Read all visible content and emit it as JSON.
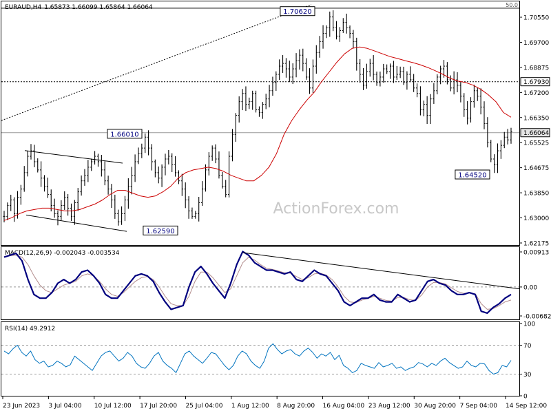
{
  "header": {
    "symbol": "EURAUD,H4",
    "ohlc": "1.65873 1.66099 1.65864 1.66064"
  },
  "watermark": "ActionForex.com",
  "colors": {
    "price": "#000000",
    "ma": "#cc0000",
    "macd_line": "#00007f",
    "macd_signal": "#b28c8c",
    "rsi": "#0073bf",
    "grid": "#999999",
    "watermark": "#c8c8c8"
  },
  "chart_data": [
    {
      "type": "line",
      "panel": "price",
      "title": "EURAUD,H4",
      "x_tick_labels": [
        "23 Jun 2023",
        "3 Jul 04:00",
        "10 Jul 12:00",
        "17 Jul 20:00",
        "25 Jul 04:00",
        "1 Aug 12:00",
        "8 Aug 20:00",
        "16 Aug 04:00",
        "23 Aug 12:00",
        "30 Aug 20:00",
        "7 Sep 04:00",
        "14 Sep 12:00"
      ],
      "y_tick_labels": [
        "1.70550",
        "1.69700",
        "1.68875",
        "1.67200",
        "1.66350",
        "1.65525",
        "1.64675",
        "1.63850",
        "1.63000",
        "1.62175"
      ],
      "ylim": [
        1.6195,
        1.7082
      ],
      "series": [
        {
          "role": "close",
          "values": [
            1.63,
            1.634,
            1.636,
            1.631,
            1.637,
            1.64,
            1.646,
            1.652,
            1.654,
            1.65,
            1.647,
            1.644,
            1.641,
            1.638,
            1.634,
            1.631,
            1.63,
            1.634,
            1.637,
            1.633,
            1.63,
            1.635,
            1.639,
            1.643,
            1.645,
            1.648,
            1.65,
            1.652,
            1.65,
            1.647,
            1.643,
            1.64,
            1.636,
            1.631,
            1.628,
            1.631,
            1.636,
            1.641,
            1.645,
            1.65,
            1.653,
            1.655,
            1.659,
            1.655,
            1.65,
            1.646,
            1.644,
            1.648,
            1.651,
            1.652,
            1.649,
            1.646,
            1.643,
            1.64,
            1.636,
            1.632,
            1.63,
            1.631,
            1.635,
            1.64,
            1.647,
            1.652,
            1.655,
            1.651,
            1.645,
            1.641,
            1.638,
            1.652,
            1.66,
            1.667,
            1.672,
            1.675,
            1.671,
            1.672,
            1.675,
            1.669,
            1.668,
            1.671,
            1.673,
            1.676,
            1.679,
            1.682,
            1.685,
            1.686,
            1.684,
            1.681,
            1.684,
            1.687,
            1.689,
            1.686,
            1.681,
            1.677,
            1.685,
            1.69,
            1.694,
            1.697,
            1.699,
            1.703,
            1.699,
            1.696,
            1.698,
            1.701,
            1.699,
            1.697,
            1.694,
            1.686,
            1.682,
            1.678,
            1.683,
            1.686,
            1.682,
            1.679,
            1.681,
            1.684,
            1.683,
            1.685,
            1.681,
            1.682,
            1.683,
            1.679,
            1.682,
            1.68,
            1.677,
            1.675,
            1.669,
            1.671,
            1.667,
            1.673,
            1.676,
            1.681,
            1.684,
            1.685,
            1.68,
            1.677,
            1.68,
            1.678,
            1.674,
            1.669,
            1.666,
            1.672,
            1.676,
            1.674,
            1.67,
            1.664,
            1.657,
            1.651,
            1.649,
            1.654,
            1.656,
            1.659,
            1.658,
            1.661
          ]
        },
        {
          "role": "moving-average",
          "values": [
            1.6285,
            1.6295,
            1.631,
            1.632,
            1.6325,
            1.633,
            1.633,
            1.6325,
            1.632,
            1.632,
            1.6325,
            1.6335,
            1.6345,
            1.636,
            1.638,
            1.6395,
            1.6395,
            1.6385,
            1.6375,
            1.637,
            1.6375,
            1.639,
            1.641,
            1.644,
            1.646,
            1.647,
            1.6475,
            1.648,
            1.6475,
            1.6465,
            1.645,
            1.644,
            1.643,
            1.643,
            1.645,
            1.648,
            1.653,
            1.66,
            1.665,
            1.669,
            1.6725,
            1.6755,
            1.6795,
            1.683,
            1.6865,
            1.6895,
            1.6915,
            1.692,
            1.6915,
            1.6905,
            1.6895,
            1.6885,
            1.6878,
            1.687,
            1.6863,
            1.6855,
            1.6845,
            1.6833,
            1.682,
            1.6805,
            1.6795,
            1.679,
            1.678,
            1.6765,
            1.6745,
            1.672,
            1.668,
            1.6663
          ]
        }
      ],
      "annotations": [
        {
          "label": "1.70620",
          "value": 1.7062
        },
        {
          "label": "1.66010",
          "value": 1.6601
        },
        {
          "label": "1.62590",
          "value": 1.6259
        },
        {
          "label": "1.64520",
          "value": 1.6452
        },
        {
          "label": "50.0",
          "value": 1.7062
        }
      ],
      "hlines": [
        {
          "label": "1.67930",
          "value": 1.6793
        },
        {
          "label": "1.66064",
          "value": 1.66064
        }
      ]
    },
    {
      "type": "line",
      "panel": "macd",
      "title": "MACD(12,26,9) -0.002043 -0.003534",
      "y_tick_labels": [
        "0.00913",
        "0.00",
        "-0.006823"
      ],
      "ylim": [
        -0.0085,
        0.0105
      ],
      "series": [
        {
          "role": "macd",
          "values": [
            0.008,
            0.0085,
            0.009,
            0.007,
            0.002,
            -0.002,
            -0.003,
            -0.003,
            -0.0015,
            0.001,
            0.002,
            0.001,
            0.002,
            0.004,
            0.0045,
            0.003,
            0.001,
            -0.002,
            -0.003,
            -0.003,
            -0.001,
            0.001,
            0.003,
            0.0035,
            0.003,
            0.0015,
            -0.0015,
            -0.004,
            -0.006,
            -0.0055,
            -0.005,
            0.0,
            0.004,
            0.0055,
            0.0035,
            0.001,
            -0.001,
            -0.003,
            0.001,
            0.006,
            0.0095,
            0.0085,
            0.0065,
            0.0055,
            0.0045,
            0.0045,
            0.004,
            0.0035,
            0.004,
            0.002,
            0.0015,
            0.003,
            0.0045,
            0.0035,
            0.003,
            0.001,
            -0.001,
            -0.004,
            -0.005,
            -0.004,
            -0.003,
            -0.003,
            -0.002,
            -0.0035,
            -0.004,
            -0.004,
            -0.002,
            -0.003,
            -0.004,
            -0.0035,
            -0.001,
            0.0015,
            0.002,
            0.001,
            0.0005,
            -0.001,
            -0.002,
            -0.002,
            -0.0015,
            -0.002,
            -0.0065,
            -0.007,
            -0.0055,
            -0.0045,
            -0.003,
            -0.002
          ]
        },
        {
          "role": "signal",
          "values": [
            0.0082,
            0.0084,
            0.0085,
            0.008,
            0.006,
            0.003,
            0.0005,
            -0.001,
            -0.0015,
            -0.0005,
            0.0005,
            0.001,
            0.0015,
            0.003,
            0.0035,
            0.003,
            0.0015,
            -0.0005,
            -0.002,
            -0.0025,
            -0.0015,
            0.0,
            0.0015,
            0.0025,
            0.0028,
            0.002,
            0.0,
            -0.0025,
            -0.0045,
            -0.005,
            -0.005,
            -0.0025,
            0.0015,
            0.004,
            0.004,
            0.0025,
            0.0005,
            -0.0015,
            -0.0005,
            0.003,
            0.0065,
            0.008,
            0.0072,
            0.006,
            0.005,
            0.0047,
            0.0043,
            0.0038,
            0.0037,
            0.0028,
            0.002,
            0.0025,
            0.0035,
            0.0037,
            0.0032,
            0.002,
            0.0,
            -0.0025,
            -0.004,
            -0.0042,
            -0.0035,
            -0.0031,
            -0.0025,
            -0.003,
            -0.0036,
            -0.0038,
            -0.0028,
            -0.0028,
            -0.0034,
            -0.0036,
            -0.0022,
            0.0,
            0.0012,
            0.0012,
            0.0008,
            -0.0002,
            -0.0012,
            -0.0017,
            -0.0016,
            -0.0018,
            -0.0045,
            -0.006,
            -0.0058,
            -0.005,
            -0.004,
            -0.0035
          ]
        }
      ],
      "trendline": [
        {
          "i": 40,
          "v": 0.0092
        },
        {
          "i": 85,
          "v": -0.0005
        }
      ]
    },
    {
      "type": "line",
      "panel": "rsi",
      "title": "RSI(14) 49.2912",
      "y_tick_labels": [
        "100",
        "70",
        "30",
        "0"
      ],
      "ylim": [
        0,
        100
      ],
      "levels": [
        70,
        30
      ],
      "series": [
        {
          "role": "rsi",
          "values": [
            62,
            58,
            65,
            70,
            60,
            55,
            62,
            50,
            45,
            48,
            40,
            42,
            48,
            45,
            40,
            43,
            55,
            50,
            45,
            40,
            35,
            45,
            55,
            60,
            62,
            55,
            48,
            52,
            60,
            55,
            45,
            40,
            38,
            45,
            55,
            60,
            48,
            42,
            38,
            32,
            45,
            58,
            62,
            55,
            50,
            45,
            52,
            60,
            58,
            50,
            42,
            36,
            42,
            55,
            62,
            58,
            48,
            42,
            38,
            48,
            66,
            72,
            64,
            58,
            62,
            64,
            58,
            55,
            62,
            66,
            60,
            52,
            58,
            55,
            60,
            50,
            56,
            42,
            38,
            32,
            35,
            45,
            42,
            40,
            38,
            46,
            40,
            42,
            45,
            38,
            40,
            35,
            38,
            40,
            46,
            44,
            40,
            45,
            42,
            48,
            52,
            46,
            42,
            38,
            40,
            48,
            42,
            40,
            45,
            44,
            35,
            30,
            32,
            42,
            40,
            49
          ]
        }
      ]
    }
  ]
}
